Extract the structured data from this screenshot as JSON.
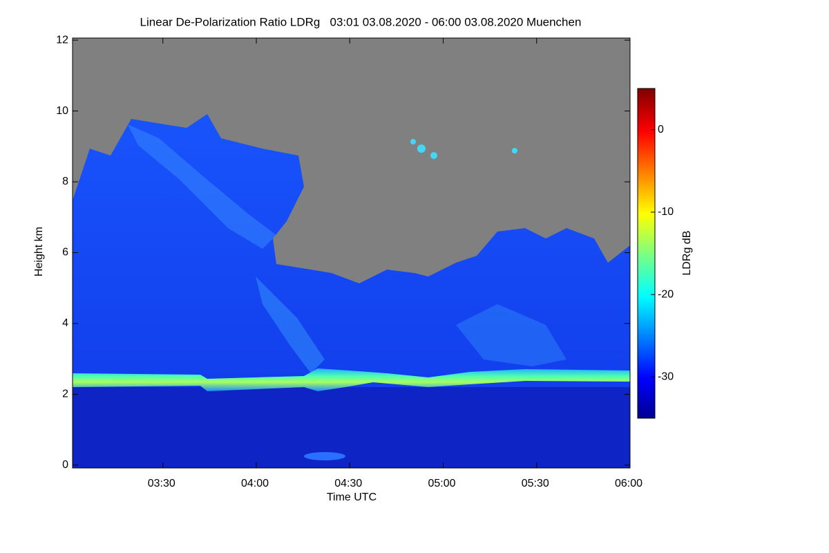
{
  "chart_data": {
    "type": "heatmap",
    "title": "Linear De-Polarization Ratio LDRg   03:01 03.08.2020 - 06:00 03.08.2020 Muenchen",
    "x_label": "Time UTC",
    "y_label": "Height km",
    "xlim": [
      181,
      360
    ],
    "xticks": [
      {
        "value": 210,
        "label": "03:30"
      },
      {
        "value": 240,
        "label": "04:00"
      },
      {
        "value": 270,
        "label": "04:30"
      },
      {
        "value": 300,
        "label": "05:00"
      },
      {
        "value": 330,
        "label": "05:30"
      },
      {
        "value": 360,
        "label": "06:00"
      }
    ],
    "ylim": [
      -0.08,
      12.06
    ],
    "yticks": [
      0,
      2,
      4,
      6,
      8,
      10,
      12
    ],
    "colormap": "jet",
    "colorbar": {
      "label": "LDRg dB",
      "lim": [
        -35,
        5
      ],
      "ticks": [
        0,
        -10,
        -20,
        -30
      ]
    }
  }
}
